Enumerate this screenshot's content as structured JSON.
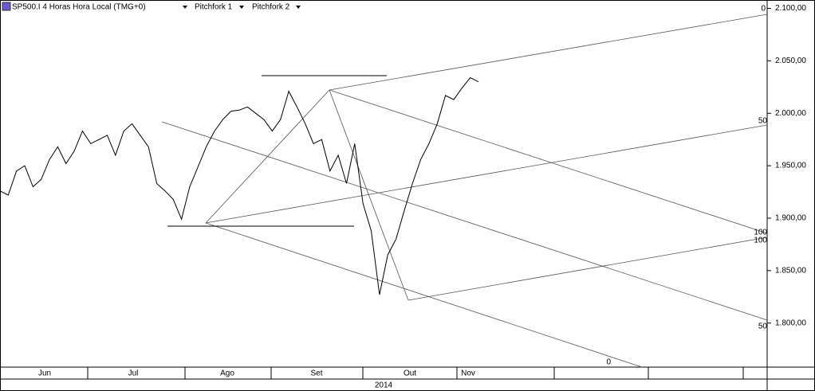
{
  "header": {
    "symbol": "SP500.I 4 Horas Hora Local (TMG+0)",
    "tools": [
      "Pitchfork 1",
      "Pitchfork 2"
    ]
  },
  "chart_data": {
    "type": "line",
    "color": "#000000",
    "values": [
      1926,
      1922,
      1945,
      1950,
      1930,
      1937,
      1956,
      1968,
      1952,
      1964,
      1983,
      1971,
      1975,
      1979,
      1960,
      1983,
      1990,
      1979,
      1968,
      1933,
      1926,
      1918,
      1899,
      1930,
      1949,
      1968,
      1983,
      1994,
      2002,
      2003,
      2006,
      2000,
      1994,
      1983,
      1994,
      2021,
      2006,
      1990,
      1971,
      1975,
      1945,
      1960,
      1933,
      1971,
      1914,
      1888,
      1827,
      1865,
      1880,
      1907,
      1933,
      1956,
      1971,
      1990,
      2017,
      2013,
      2024,
      2034,
      2030
    ],
    "ylim": [
      1758,
      2108
    ],
    "yticks": [
      {
        "value": 1800,
        "label": "1.800,00"
      },
      {
        "value": 1850,
        "label": "1.850,00"
      },
      {
        "value": 1900,
        "label": "1.900,00"
      },
      {
        "value": 1950,
        "label": "1.950,00"
      },
      {
        "value": 2000,
        "label": "2.000,00"
      },
      {
        "value": 2050,
        "label": "2.050,00"
      },
      {
        "value": 2100,
        "label": "2.100,00"
      }
    ],
    "months": [
      "Jun",
      "Jul",
      "Ago",
      "Set",
      "Out",
      "Nov"
    ],
    "year": "2014",
    "pitchfork_labels": [
      "0",
      "50",
      "100",
      "100",
      "50",
      "0"
    ]
  }
}
